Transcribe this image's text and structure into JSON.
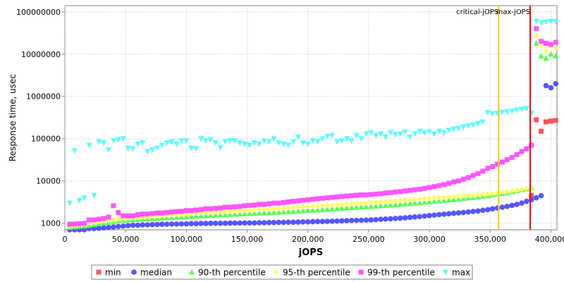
{
  "chart_data": {
    "type": "scatter",
    "xlabel": "jOPS",
    "ylabel": "Response time, usec",
    "y_scale": "log",
    "xlim": [
      0,
      405000
    ],
    "ylim": [
      700,
      140000000
    ],
    "x_ticks": [
      "0",
      "50,000",
      "100,000",
      "150,000",
      "200,000",
      "250,000",
      "300,000",
      "350,000",
      "400,000"
    ],
    "y_ticks": [
      "1000",
      "10000",
      "100000",
      "1000000",
      "10000000",
      "100000000"
    ],
    "grid": true,
    "legend_position": "bottom",
    "markers": [
      {
        "name": "critical-jOPS",
        "x": 357000,
        "color": "#ffc800"
      },
      {
        "name": "max-jOPS",
        "x": 383000,
        "color": "#ff0000"
      }
    ],
    "series": [
      {
        "name": "min",
        "color": "#ff5555",
        "shape": "square",
        "x": [
          384000,
          388000,
          392000,
          396000,
          400000,
          404000
        ],
        "y": [
          4500,
          280000,
          150000,
          250000,
          260000,
          270000
        ]
      },
      {
        "name": "median",
        "color": "#5555ff",
        "shape": "circle",
        "x": [
          4000,
          8000,
          12000,
          16000,
          20000,
          24000,
          28000,
          32000,
          36000,
          40000,
          44000,
          48000,
          52000,
          56000,
          60000,
          64000,
          68000,
          72000,
          76000,
          80000,
          84000,
          88000,
          92000,
          96000,
          100000,
          104000,
          108000,
          112000,
          116000,
          120000,
          124000,
          128000,
          132000,
          136000,
          140000,
          144000,
          148000,
          152000,
          156000,
          160000,
          164000,
          168000,
          172000,
          176000,
          180000,
          184000,
          188000,
          192000,
          196000,
          200000,
          204000,
          208000,
          212000,
          216000,
          220000,
          224000,
          228000,
          232000,
          236000,
          240000,
          244000,
          248000,
          252000,
          256000,
          260000,
          264000,
          268000,
          272000,
          276000,
          280000,
          284000,
          288000,
          292000,
          296000,
          300000,
          304000,
          308000,
          312000,
          316000,
          320000,
          324000,
          328000,
          332000,
          336000,
          340000,
          344000,
          348000,
          352000,
          356000,
          360000,
          364000,
          368000,
          372000,
          376000,
          380000,
          384000,
          388000,
          392000,
          396000,
          400000,
          404000
        ],
        "y": [
          700,
          700,
          700,
          700,
          750,
          750,
          760,
          780,
          800,
          820,
          840,
          860,
          880,
          900,
          900,
          920,
          920,
          930,
          940,
          950,
          950,
          960,
          960,
          970,
          970,
          980,
          980,
          990,
          990,
          1000,
          1000,
          1000,
          1000,
          1010,
          1010,
          1010,
          1020,
          1020,
          1020,
          1030,
          1030,
          1040,
          1040,
          1050,
          1050,
          1060,
          1060,
          1070,
          1080,
          1080,
          1090,
          1100,
          1100,
          1110,
          1120,
          1130,
          1140,
          1150,
          1160,
          1170,
          1180,
          1190,
          1200,
          1220,
          1240,
          1260,
          1280,
          1300,
          1320,
          1350,
          1380,
          1410,
          1440,
          1480,
          1520,
          1560,
          1600,
          1640,
          1680,
          1720,
          1760,
          1800,
          1850,
          1900,
          1960,
          2030,
          2100,
          2200,
          2300,
          2400,
          2500,
          2650,
          2800,
          3000,
          3300,
          3600,
          4000,
          4500,
          1800000,
          1600000,
          2000000
        ]
      },
      {
        "name": "90-th percentile",
        "color": "#55ff55",
        "shape": "triangle-up",
        "x": [
          4000,
          8000,
          12000,
          16000,
          20000,
          24000,
          28000,
          32000,
          36000,
          40000,
          44000,
          48000,
          52000,
          56000,
          60000,
          64000,
          68000,
          72000,
          76000,
          80000,
          84000,
          88000,
          92000,
          96000,
          100000,
          104000,
          108000,
          112000,
          116000,
          120000,
          124000,
          128000,
          132000,
          136000,
          140000,
          144000,
          148000,
          152000,
          156000,
          160000,
          164000,
          168000,
          172000,
          176000,
          180000,
          184000,
          188000,
          192000,
          196000,
          200000,
          204000,
          208000,
          212000,
          216000,
          220000,
          224000,
          228000,
          232000,
          236000,
          240000,
          244000,
          248000,
          252000,
          256000,
          260000,
          264000,
          268000,
          272000,
          276000,
          280000,
          284000,
          288000,
          292000,
          296000,
          300000,
          304000,
          308000,
          312000,
          316000,
          320000,
          324000,
          328000,
          332000,
          336000,
          340000,
          344000,
          348000,
          352000,
          356000,
          360000,
          364000,
          368000,
          372000,
          376000,
          380000,
          384000,
          388000,
          392000,
          396000,
          400000,
          404000
        ],
        "y": [
          800,
          820,
          840,
          860,
          900,
          940,
          980,
          1020,
          1060,
          1100,
          1140,
          1180,
          1200,
          1220,
          1240,
          1260,
          1280,
          1300,
          1320,
          1340,
          1360,
          1380,
          1400,
          1420,
          1440,
          1460,
          1480,
          1500,
          1520,
          1540,
          1560,
          1580,
          1600,
          1620,
          1640,
          1660,
          1680,
          1700,
          1720,
          1740,
          1760,
          1780,
          1800,
          1830,
          1860,
          1890,
          1920,
          1950,
          1980,
          2010,
          2040,
          2070,
          2100,
          2140,
          2180,
          2220,
          2260,
          2300,
          2340,
          2380,
          2420,
          2460,
          2500,
          2550,
          2600,
          2650,
          2700,
          2760,
          2820,
          2880,
          2940,
          3000,
          3070,
          3140,
          3220,
          3300,
          3380,
          3460,
          3550,
          3650,
          3750,
          3850,
          3950,
          4050,
          4200,
          4350,
          4500,
          4700,
          4900,
          5100,
          5300,
          5600,
          5900,
          6200,
          6500,
          7000,
          18000000,
          9000000,
          8000000,
          10000000,
          9000000
        ]
      },
      {
        "name": "95-th percentile",
        "color": "#ffff55",
        "shape": "diamond",
        "x": [
          4000,
          8000,
          12000,
          16000,
          20000,
          24000,
          28000,
          32000,
          36000,
          40000,
          44000,
          48000,
          52000,
          56000,
          60000,
          64000,
          68000,
          72000,
          76000,
          80000,
          84000,
          88000,
          92000,
          96000,
          100000,
          104000,
          108000,
          112000,
          116000,
          120000,
          124000,
          128000,
          132000,
          136000,
          140000,
          144000,
          148000,
          152000,
          156000,
          160000,
          164000,
          168000,
          172000,
          176000,
          180000,
          184000,
          188000,
          192000,
          196000,
          200000,
          204000,
          208000,
          212000,
          216000,
          220000,
          224000,
          228000,
          232000,
          236000,
          240000,
          244000,
          248000,
          252000,
          256000,
          260000,
          264000,
          268000,
          272000,
          276000,
          280000,
          284000,
          288000,
          292000,
          296000,
          300000,
          304000,
          308000,
          312000,
          316000,
          320000,
          324000,
          328000,
          332000,
          336000,
          340000,
          344000,
          348000,
          352000,
          356000,
          360000,
          364000,
          368000,
          372000,
          376000,
          380000,
          384000,
          388000,
          392000,
          396000,
          400000,
          404000
        ],
        "y": [
          850,
          880,
          910,
          950,
          1000,
          1040,
          1080,
          1120,
          1160,
          1200,
          1240,
          1280,
          1310,
          1340,
          1370,
          1400,
          1430,
          1460,
          1490,
          1520,
          1550,
          1580,
          1610,
          1640,
          1670,
          1700,
          1730,
          1760,
          1790,
          1820,
          1850,
          1880,
          1910,
          1940,
          1970,
          2000,
          2030,
          2060,
          2090,
          2120,
          2150,
          2180,
          2210,
          2240,
          2280,
          2320,
          2360,
          2400,
          2440,
          2480,
          2520,
          2560,
          2600,
          2650,
          2700,
          2750,
          2800,
          2850,
          2900,
          2950,
          3000,
          3050,
          3100,
          3160,
          3220,
          3280,
          3340,
          3400,
          3470,
          3540,
          3610,
          3680,
          3760,
          3840,
          3920,
          4000,
          4080,
          4160,
          4240,
          4320,
          4400,
          4480,
          4560,
          4650,
          4740,
          4830,
          4920,
          5010,
          5200,
          5400,
          5600,
          5800,
          6000,
          6300,
          6600,
          7000,
          27000000,
          16000000,
          12000000,
          15000000,
          14000000
        ]
      },
      {
        "name": "99-th percentile",
        "color": "#ff55ff",
        "shape": "square",
        "x": [
          4000,
          8000,
          12000,
          16000,
          20000,
          24000,
          28000,
          32000,
          36000,
          40000,
          44000,
          48000,
          52000,
          56000,
          60000,
          64000,
          68000,
          72000,
          76000,
          80000,
          84000,
          88000,
          92000,
          96000,
          100000,
          104000,
          108000,
          112000,
          116000,
          120000,
          124000,
          128000,
          132000,
          136000,
          140000,
          144000,
          148000,
          152000,
          156000,
          160000,
          164000,
          168000,
          172000,
          176000,
          180000,
          184000,
          188000,
          192000,
          196000,
          200000,
          204000,
          208000,
          212000,
          216000,
          220000,
          224000,
          228000,
          232000,
          236000,
          240000,
          244000,
          248000,
          252000,
          256000,
          260000,
          264000,
          268000,
          272000,
          276000,
          280000,
          284000,
          288000,
          292000,
          296000,
          300000,
          304000,
          308000,
          312000,
          316000,
          320000,
          324000,
          328000,
          332000,
          336000,
          340000,
          344000,
          348000,
          352000,
          356000,
          360000,
          364000,
          368000,
          372000,
          376000,
          380000,
          384000,
          388000,
          392000,
          396000,
          400000,
          404000
        ],
        "y": [
          950,
          960,
          980,
          1000,
          1200,
          1200,
          1250,
          1300,
          1400,
          2600,
          1800,
          1500,
          1500,
          1500,
          1600,
          1650,
          1650,
          1700,
          1750,
          1750,
          1800,
          1850,
          1900,
          1900,
          2000,
          2000,
          2050,
          2100,
          2200,
          2200,
          2250,
          2300,
          2400,
          2400,
          2450,
          2500,
          2600,
          2650,
          2700,
          2800,
          2800,
          2900,
          3000,
          3000,
          3100,
          3200,
          3300,
          3400,
          3500,
          3600,
          3700,
          3800,
          3900,
          4000,
          4100,
          4200,
          4300,
          4400,
          4500,
          4600,
          4700,
          4700,
          4800,
          4900,
          5000,
          5200,
          5300,
          5500,
          5600,
          5800,
          6000,
          6200,
          6400,
          6700,
          7000,
          7400,
          7800,
          8200,
          8800,
          9500,
          10000,
          11000,
          12000,
          13500,
          15000,
          17000,
          20000,
          22000,
          25000,
          28000,
          32000,
          36000,
          42000,
          50000,
          58000,
          70000,
          40000000,
          20000000,
          18000000,
          17000000,
          19000000
        ]
      },
      {
        "name": "max",
        "color": "#55ffff",
        "shape": "triangle-down",
        "x": [
          4000,
          8000,
          12000,
          16000,
          20000,
          24000,
          28000,
          32000,
          36000,
          40000,
          44000,
          48000,
          52000,
          56000,
          60000,
          64000,
          68000,
          72000,
          76000,
          80000,
          84000,
          88000,
          92000,
          96000,
          100000,
          104000,
          108000,
          112000,
          116000,
          120000,
          124000,
          128000,
          132000,
          136000,
          140000,
          144000,
          148000,
          152000,
          156000,
          160000,
          164000,
          168000,
          172000,
          176000,
          180000,
          184000,
          188000,
          192000,
          196000,
          200000,
          204000,
          208000,
          212000,
          216000,
          220000,
          224000,
          228000,
          232000,
          236000,
          240000,
          244000,
          248000,
          252000,
          256000,
          260000,
          264000,
          268000,
          272000,
          276000,
          280000,
          284000,
          288000,
          292000,
          296000,
          300000,
          304000,
          308000,
          312000,
          316000,
          320000,
          324000,
          328000,
          332000,
          336000,
          340000,
          344000,
          348000,
          352000,
          356000,
          360000,
          364000,
          368000,
          372000,
          376000,
          380000,
          384000,
          388000,
          392000,
          396000,
          400000,
          404000
        ],
        "y": [
          3000,
          52000,
          3500,
          4000,
          70000,
          4500,
          85000,
          80000,
          55000,
          90000,
          95000,
          100000,
          60000,
          58000,
          75000,
          80000,
          50000,
          55000,
          60000,
          70000,
          80000,
          85000,
          75000,
          90000,
          90000,
          60000,
          58000,
          100000,
          90000,
          95000,
          80000,
          62000,
          85000,
          90000,
          90000,
          80000,
          75000,
          70000,
          80000,
          75000,
          90000,
          85000,
          100000,
          80000,
          75000,
          70000,
          85000,
          110000,
          80000,
          75000,
          90000,
          85000,
          100000,
          115000,
          120000,
          85000,
          90000,
          100000,
          90000,
          120000,
          100000,
          130000,
          140000,
          120000,
          130000,
          110000,
          140000,
          125000,
          130000,
          145000,
          110000,
          130000,
          150000,
          140000,
          145000,
          130000,
          150000,
          140000,
          160000,
          170000,
          175000,
          190000,
          200000,
          210000,
          230000,
          250000,
          420000,
          390000,
          400000,
          420000,
          430000,
          450000,
          480000,
          500000,
          520000,
          400000,
          60000000,
          55000000,
          58000000,
          60000000,
          59000000
        ]
      }
    ]
  }
}
